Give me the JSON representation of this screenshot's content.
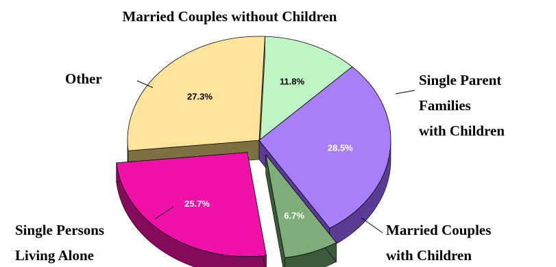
{
  "chart_data": {
    "type": "pie",
    "style": "3d-exploded",
    "slices": [
      {
        "label": "Married Couples without Children",
        "value": 28.5,
        "pct_text": "28.5%",
        "top": "#a77ff7",
        "side": "#5b3c95",
        "pct_color": "#ffffff",
        "exploded": false
      },
      {
        "label": "Single Parent Families with Children",
        "value": 6.7,
        "pct_text": "6.7%",
        "top": "#7dad78",
        "side": "#3d5a3a",
        "pct_color": "#ffffff",
        "exploded": true
      },
      {
        "label": "Married Couples with Children",
        "value": 25.7,
        "pct_text": "25.7%",
        "top": "#ef11a8",
        "side": "#860a5b",
        "pct_color": "#ffffff",
        "exploded": true
      },
      {
        "label": "Single Persons Living Alone",
        "value": 27.3,
        "pct_text": "27.3%",
        "top": "#ffe39a",
        "side": "#7d7142",
        "pct_color": "#000000",
        "exploded": false
      },
      {
        "label": "Other",
        "value": 11.8,
        "pct_text": "11.8%",
        "top": "#bff5c6",
        "side": "#6a8f6e",
        "pct_color": "#000000",
        "exploded": false
      }
    ],
    "category_labels": {
      "married_without": "Married Couples without Children",
      "single_parent_line1": "Single Parent",
      "single_parent_line2": "Families",
      "single_parent_line3": "with Children",
      "married_with_line1": "Married Couples",
      "married_with_line2": "with Children",
      "single_persons_line1": "Single Persons",
      "single_persons_line2": "Living Alone",
      "other": "Other"
    }
  }
}
